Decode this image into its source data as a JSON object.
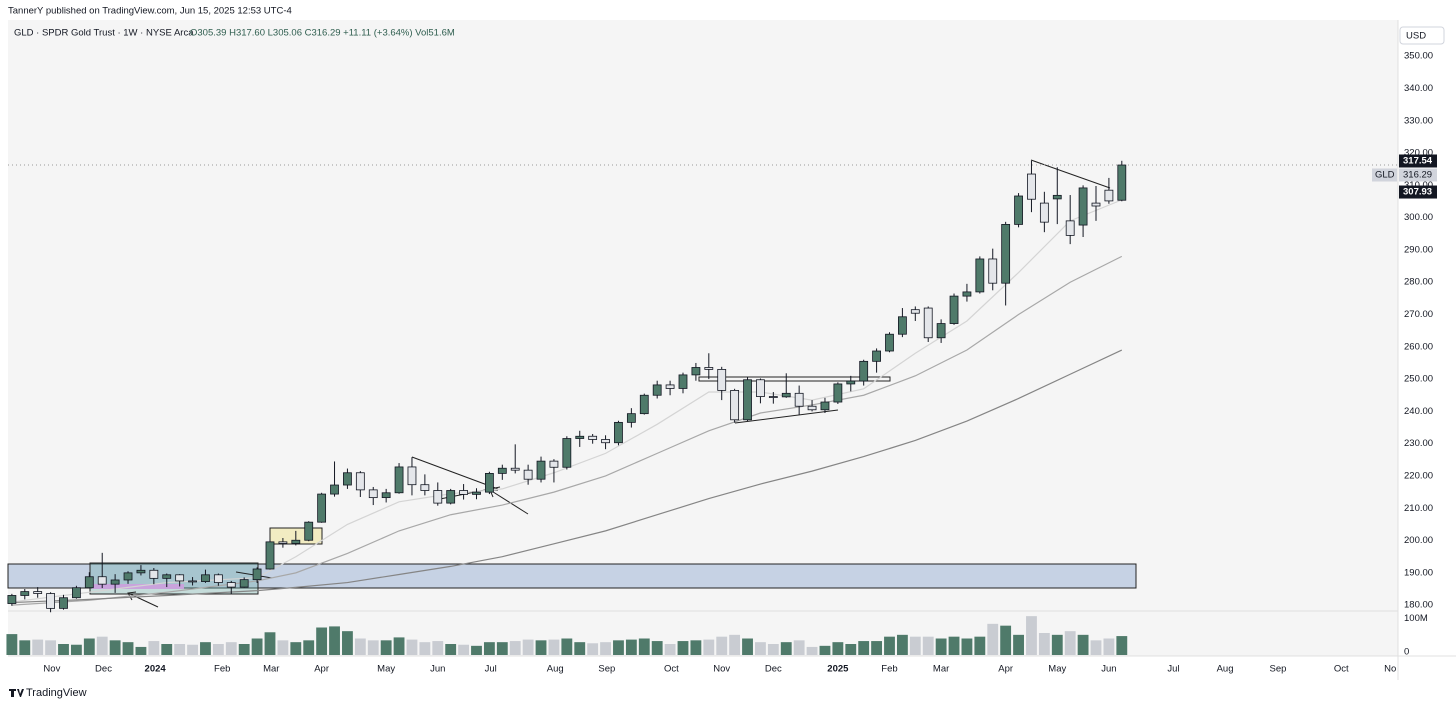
{
  "chart_data": {
    "type": "candlestick",
    "header": "TannerY published on TradingView.com, Jun 15, 2025 12:53 UTC-4",
    "title": "GLD · SPDR Gold Trust · 1W · NYSE Arca",
    "legend_values": "O305.39  H317.60  L305.06  C316.29  +11.11 (+3.64%)  Vol51.6M",
    "currency": "USD",
    "brand": "TradingView",
    "up_color": "#4f7a6a",
    "down_color": "#e4e6ea",
    "open": [
      180.5,
      183.0,
      184.2,
      183.6,
      179.0,
      182.3,
      185.4,
      188.8,
      186.5,
      187.8,
      190.0,
      190.8,
      188.3,
      189.4,
      187.5,
      187.3,
      189.4,
      187.0,
      185.6,
      187.9,
      191.2,
      199.6,
      199.1,
      200.1,
      205.7,
      214.4,
      217.2,
      221.0,
      215.7,
      213.3,
      214.8,
      222.8,
      217.3,
      215.5,
      211.6,
      215.5,
      214.3,
      215.0,
      220.8,
      222.4,
      221.8,
      219.0,
      224.6,
      222.7,
      231.6,
      232.3,
      231.3,
      230.3,
      236.6,
      239.3,
      245.0,
      248.2,
      247.1,
      251.3,
      253.6,
      253.0,
      246.5,
      237.4,
      249.8,
      244.6,
      244.5,
      245.6,
      241.6,
      240.5,
      242.9,
      248.5,
      249.4,
      255.5,
      258.7,
      263.9,
      271.5,
      272.0,
      262.8,
      267.2,
      275.7,
      277.0,
      287.2,
      279.7,
      297.9,
      313.5,
      304.5,
      305.8,
      299.0,
      297.7,
      304.5,
      308.5,
      305.39
    ],
    "high": [
      183.5,
      185.0,
      185.6,
      184.0,
      183.2,
      186.0,
      190.2,
      196.2,
      189.6,
      190.5,
      192.4,
      191.5,
      189.8,
      189.6,
      188.7,
      191.0,
      189.8,
      187.5,
      188.6,
      191.7,
      200.3,
      200.8,
      203.0,
      206.0,
      214.8,
      224.5,
      222.3,
      221.5,
      216.6,
      216.0,
      224.0,
      225.8,
      220.5,
      218.0,
      216.0,
      217.5,
      216.2,
      221.3,
      223.5,
      229.8,
      223.5,
      226.0,
      225.2,
      232.3,
      234.0,
      233.0,
      232.6,
      237.1,
      241.0,
      245.5,
      249.5,
      249.5,
      252.0,
      255.0,
      258.0,
      253.8,
      247.0,
      250.6,
      250.2,
      246.0,
      251.8,
      248.0,
      243.5,
      244.2,
      249.0,
      251.0,
      256.0,
      259.5,
      264.5,
      272.0,
      272.5,
      272.5,
      268.5,
      276.5,
      279.5,
      288.0,
      290.4,
      298.7,
      307.6,
      317.6,
      308.0,
      315.6,
      307.0,
      310.0,
      309.8,
      312.3,
      317.6
    ],
    "low": [
      179.8,
      181.8,
      182.3,
      177.8,
      178.6,
      182.0,
      185.2,
      185.3,
      183.8,
      186.6,
      189.2,
      186.5,
      185.6,
      185.8,
      186.1,
      186.9,
      186.0,
      183.5,
      185.4,
      186.9,
      191.0,
      197.8,
      198.5,
      199.8,
      205.5,
      213.6,
      216.0,
      213.5,
      211.0,
      211.8,
      214.5,
      214.0,
      214.0,
      210.8,
      211.2,
      212.7,
      212.8,
      214.4,
      218.8,
      220.8,
      217.3,
      218.0,
      218.0,
      222.0,
      229.0,
      230.0,
      228.3,
      229.5,
      235.0,
      239.0,
      244.0,
      245.0,
      245.6,
      249.5,
      250.0,
      243.5,
      236.5,
      237.0,
      242.5,
      242.4,
      244.2,
      239.0,
      240.0,
      239.5,
      242.3,
      246.2,
      248.0,
      252.0,
      258.3,
      263.0,
      268.0,
      261.5,
      261.2,
      266.8,
      274.0,
      276.5,
      277.5,
      272.8,
      297.0,
      301.7,
      295.5,
      298.0,
      291.8,
      294.0,
      299.0,
      304.3,
      305.06
    ],
    "close": [
      183.0,
      184.2,
      183.6,
      179.0,
      182.3,
      185.4,
      188.8,
      186.5,
      187.8,
      190.0,
      190.8,
      188.3,
      189.4,
      187.5,
      187.3,
      189.4,
      187.0,
      185.6,
      187.9,
      191.2,
      199.6,
      199.1,
      200.1,
      205.7,
      214.4,
      217.2,
      221.0,
      215.7,
      213.3,
      214.8,
      222.8,
      217.3,
      215.5,
      211.6,
      215.5,
      214.3,
      215.0,
      220.8,
      222.4,
      221.8,
      219.0,
      224.6,
      222.7,
      231.6,
      232.3,
      231.3,
      230.3,
      236.6,
      239.3,
      245.0,
      248.2,
      247.1,
      251.3,
      253.6,
      253.0,
      246.5,
      237.4,
      249.8,
      244.6,
      244.5,
      245.6,
      241.6,
      240.5,
      242.9,
      248.5,
      249.4,
      255.5,
      258.7,
      263.9,
      269.3,
      270.4,
      262.8,
      267.2,
      275.7,
      277.0,
      287.2,
      279.7,
      297.9,
      306.7,
      305.7,
      298.6,
      306.9,
      294.5,
      309.2,
      303.6,
      305.18,
      316.29
    ],
    "volume": [
      57,
      40,
      42,
      40,
      30,
      28,
      45,
      50,
      40,
      35,
      22,
      38,
      30,
      30,
      28,
      35,
      30,
      35,
      30,
      45,
      62,
      40,
      35,
      40,
      75,
      78,
      65,
      45,
      40,
      40,
      48,
      42,
      35,
      38,
      30,
      28,
      25,
      35,
      35,
      38,
      42,
      40,
      42,
      45,
      35,
      32,
      35,
      40,
      42,
      45,
      38,
      30,
      38,
      40,
      42,
      50,
      55,
      45,
      35,
      30,
      35,
      40,
      22,
      25,
      35,
      30,
      38,
      38,
      50,
      55,
      50,
      50,
      45,
      50,
      45,
      50,
      85,
      80,
      55,
      106,
      60,
      55,
      65,
      55,
      40,
      45,
      51.6
    ],
    "overlays": [
      {
        "color": "#d4d4d4",
        "x": [
          0,
          6,
          12,
          19,
          22,
          26,
          30,
          34,
          38,
          42,
          46,
          50,
          54,
          58,
          62,
          66,
          70,
          74,
          78,
          82,
          86
        ],
        "values": [
          181,
          184,
          187,
          188.5,
          195,
          205,
          212,
          214.5,
          216,
          221,
          227,
          236,
          246,
          246,
          243.5,
          247,
          258,
          268,
          283,
          299,
          305.5
        ]
      },
      {
        "color": "#a8a8a8",
        "x": [
          0,
          6,
          12,
          19,
          22,
          26,
          30,
          34,
          38,
          42,
          46,
          50,
          54,
          58,
          62,
          66,
          70,
          74,
          78,
          82,
          86
        ],
        "values": [
          180,
          181.5,
          184,
          187.5,
          190,
          196,
          203,
          208,
          211,
          215,
          220,
          227,
          234,
          239.5,
          242,
          245,
          251,
          259,
          270,
          280,
          288
        ]
      },
      {
        "color": "#858585",
        "x": [
          0,
          6,
          12,
          19,
          22,
          26,
          30,
          34,
          38,
          42,
          46,
          50,
          54,
          58,
          62,
          66,
          70,
          74,
          78,
          82,
          86
        ],
        "values": [
          180.8,
          181.8,
          183,
          184.5,
          185.5,
          187,
          189.5,
          192,
          195,
          199,
          203,
          208,
          213,
          217.5,
          221.5,
          226,
          231,
          237,
          244,
          251.5,
          259
        ]
      }
    ],
    "price_labels": [
      {
        "value": 317.54,
        "color": "#131722"
      },
      {
        "name": "GLD",
        "value": 316.29,
        "color": "#d1d4dc"
      },
      {
        "value": 307.93,
        "color": "#131722"
      }
    ],
    "xlim": [
      -0.3,
      107.4
    ],
    "xticks": [
      {
        "value": 3.1,
        "label": "Nov"
      },
      {
        "value": 7.1,
        "label": "Dec"
      },
      {
        "value": 11.1,
        "label": "2024"
      },
      {
        "value": 16.3,
        "label": "Feb"
      },
      {
        "value": 20.1,
        "label": "Mar"
      },
      {
        "value": 24.0,
        "label": "Apr"
      },
      {
        "value": 29.0,
        "label": "May"
      },
      {
        "value": 33.0,
        "label": "Jun"
      },
      {
        "value": 37.1,
        "label": "Jul"
      },
      {
        "value": 42.1,
        "label": "Aug"
      },
      {
        "value": 46.1,
        "label": "Sep"
      },
      {
        "value": 51.1,
        "label": "Oct"
      },
      {
        "value": 55.0,
        "label": "Nov"
      },
      {
        "value": 59.0,
        "label": "Dec"
      },
      {
        "value": 64.0,
        "label": "2025"
      },
      {
        "value": 68.0,
        "label": "Feb"
      },
      {
        "value": 72.0,
        "label": "Mar"
      },
      {
        "value": 77.0,
        "label": "Apr"
      },
      {
        "value": 81.0,
        "label": "May"
      },
      {
        "value": 85.0,
        "label": "Jun"
      },
      {
        "value": 90.0,
        "label": "Jul"
      },
      {
        "value": 94.0,
        "label": "Aug"
      },
      {
        "value": 98.1,
        "label": "Sep"
      },
      {
        "value": 103.0,
        "label": "Oct"
      },
      {
        "value": 106.8,
        "label": "No"
      }
    ],
    "ylim": [
      178.5,
      361.2
    ],
    "yticks": [
      {
        "value": 180,
        "label": "180.00"
      },
      {
        "value": 190,
        "label": "190.00"
      },
      {
        "value": 200,
        "label": "200.00"
      },
      {
        "value": 210,
        "label": "210.00"
      },
      {
        "value": 220,
        "label": "220.00"
      },
      {
        "value": 230,
        "label": "230.00"
      },
      {
        "value": 240,
        "label": "240.00"
      },
      {
        "value": 250,
        "label": "250.00"
      },
      {
        "value": 260,
        "label": "260.00"
      },
      {
        "value": 270,
        "label": "270.00"
      },
      {
        "value": 280,
        "label": "280.00"
      },
      {
        "value": 290,
        "label": "290.00"
      },
      {
        "value": 300,
        "label": "300.00"
      },
      {
        "value": 310,
        "label": "310.00"
      },
      {
        "value": 320,
        "label": "320.00"
      },
      {
        "value": 330,
        "label": "330.00"
      },
      {
        "value": 340,
        "label": "340.00"
      },
      {
        "value": 350,
        "label": "350.00"
      }
    ],
    "vlim": [
      0,
      120
    ],
    "vticks": [
      0,
      {
        "value": 100,
        "label": "100M"
      }
    ],
    "grid": false
  }
}
